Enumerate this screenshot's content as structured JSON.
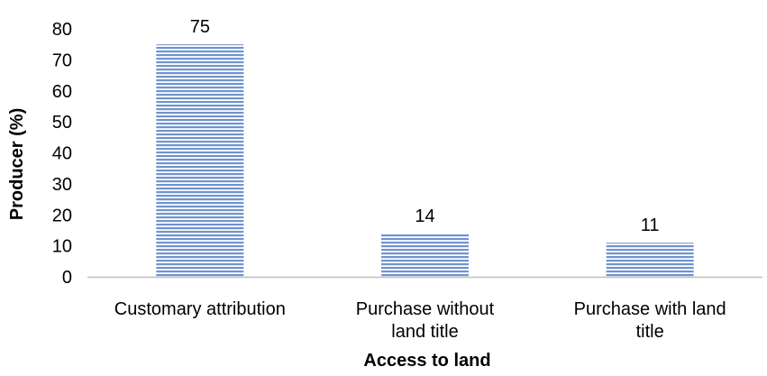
{
  "chart_data": {
    "type": "bar",
    "categories": [
      [
        "Customary attribution"
      ],
      [
        "Purchase without",
        "land title"
      ],
      [
        "Purchase with land",
        "title"
      ]
    ],
    "values": [
      75,
      14,
      11
    ],
    "data_labels": [
      "75",
      "14",
      "11"
    ],
    "title": "",
    "xlabel": "Access to land",
    "ylabel": "Producer (%)",
    "ylim": [
      0,
      80
    ],
    "yticks": [
      0,
      10,
      20,
      30,
      40,
      50,
      60,
      70,
      80
    ],
    "grid": false,
    "legend": "none",
    "bar_color": "#6f93cf",
    "bar_stripe_color": "#ffffff",
    "axis_color": "#bfbfbf"
  }
}
